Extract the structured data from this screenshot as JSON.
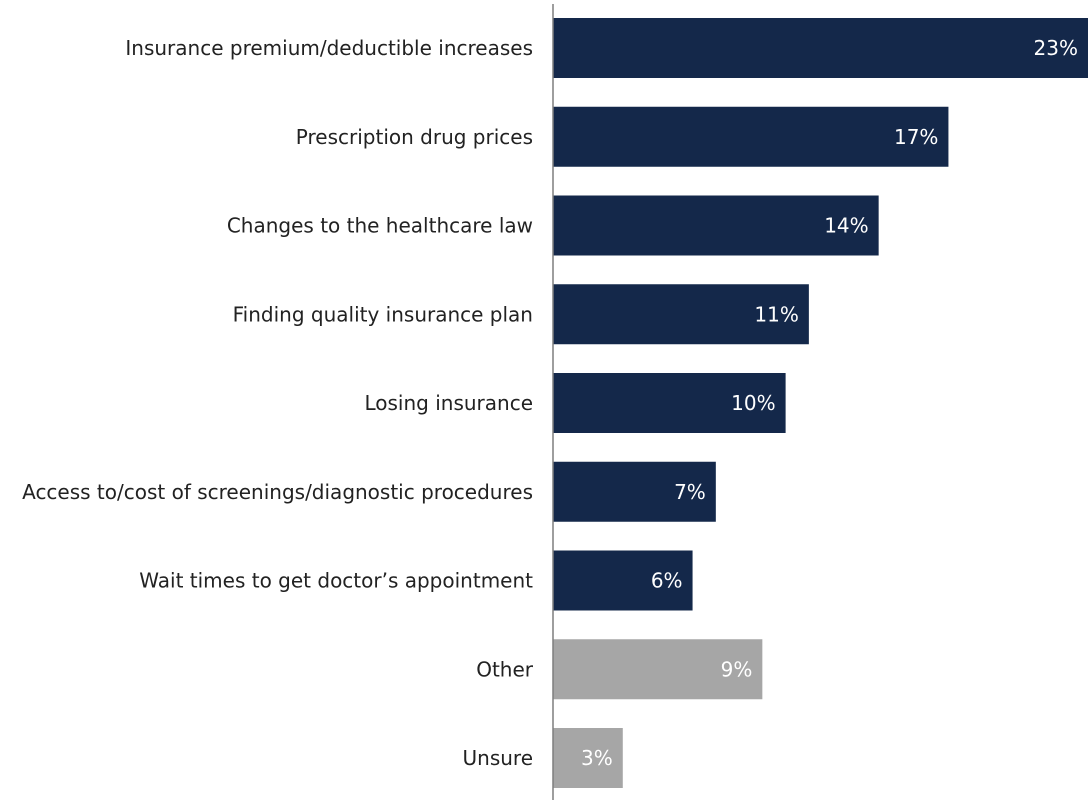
{
  "chart_data": {
    "type": "bar",
    "orientation": "horizontal",
    "categories": [
      "Insurance premium/deductible increases",
      "Prescription drug prices",
      "Changes to the healthcare law",
      "Finding quality insurance plan",
      "Losing insurance",
      "Access to/cost of screenings/diagnostic procedures",
      "Wait times to get doctor’s appointment",
      "Other",
      "Unsure"
    ],
    "values": [
      23,
      17,
      14,
      11,
      10,
      7,
      6,
      9,
      3
    ],
    "value_labels": [
      "23%",
      "17%",
      "14%",
      "11%",
      "10%",
      "7%",
      "6%",
      "9%",
      "3%"
    ],
    "colors": [
      "#14284a",
      "#14284a",
      "#14284a",
      "#14284a",
      "#14284a",
      "#14284a",
      "#14284a",
      "#a6a6a6",
      "#a6a6a6"
    ],
    "axis_color": "#7f7f7f",
    "unit": "%",
    "xlim": [
      0,
      23
    ],
    "title": "",
    "xlabel": "",
    "ylabel": "",
    "grid": false,
    "legend": "none"
  }
}
